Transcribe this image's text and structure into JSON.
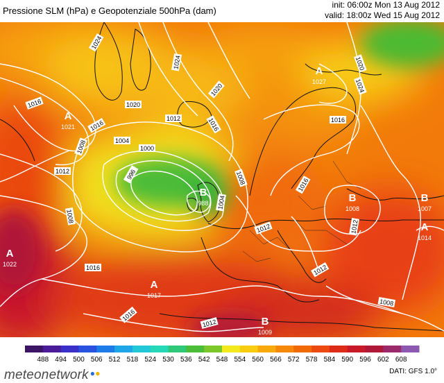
{
  "header": {
    "title": "Pressione SLM (hPa) e Geopotenziale 500hPa (dam)",
    "init": "init: 06:00z Mon 13 Aug 2012",
    "valid": "valid: 18:00z Wed 15 Aug 2012"
  },
  "pressure_centers": [
    {
      "type": "A",
      "value": "1021"
    },
    {
      "type": "A",
      "value": "1027"
    },
    {
      "type": "B",
      "value": "988"
    },
    {
      "type": "B",
      "value": "1008"
    },
    {
      "type": "B",
      "value": "1007"
    },
    {
      "type": "A",
      "value": "1014"
    },
    {
      "type": "A",
      "value": "1022"
    },
    {
      "type": "A",
      "value": "1017"
    },
    {
      "type": "B",
      "value": "1009"
    }
  ],
  "isobar_labels": [
    "1024",
    "1020",
    "1024",
    "1020",
    "1016",
    "1012",
    "1016",
    "1016",
    "1008",
    "1004",
    "1000",
    "996",
    "1012",
    "1008",
    "1004",
    "1008",
    "1012",
    "1016",
    "1016",
    "1012",
    "1016",
    "1012",
    "1012",
    "1008",
    "1020",
    "1024",
    "1016"
  ],
  "scale": {
    "ticks": [
      "488",
      "494",
      "500",
      "506",
      "512",
      "518",
      "524",
      "530",
      "536",
      "542",
      "548",
      "554",
      "560",
      "566",
      "572",
      "578",
      "584",
      "590",
      "596",
      "602",
      "608"
    ],
    "colors": [
      "#3b1463",
      "#4b1c9a",
      "#3a2fc8",
      "#2a52e0",
      "#1e7ce8",
      "#1ea6e6",
      "#22c8d8",
      "#26d8b8",
      "#2ec878",
      "#4bbd3a",
      "#7cc82a",
      "#f2ea1c",
      "#f8cc10",
      "#f8aa0c",
      "#f5880a",
      "#f26a08",
      "#ec4a10",
      "#de2a18",
      "#c81a28",
      "#b0183a",
      "#9a2a6a",
      "#8c58b0"
    ]
  },
  "brand": {
    "name": "meteonetwork"
  },
  "source": "DATI: GFS 1.0°"
}
